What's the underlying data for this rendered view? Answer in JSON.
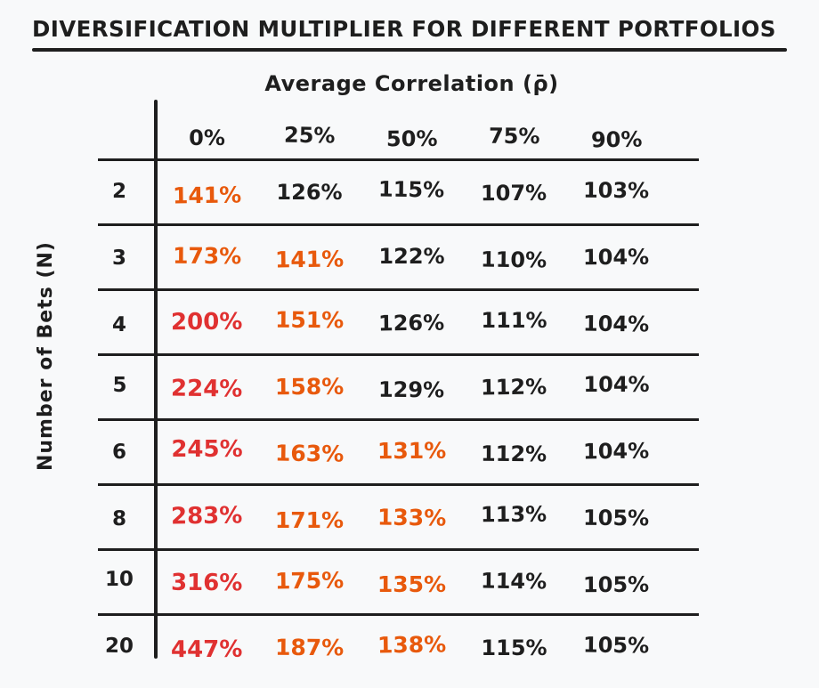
{
  "title": "DIVERSIFICATION MULTIPLIER FOR DIFFERENT PORTFOLIOS",
  "colors": {
    "black": "#1e1e1e",
    "red": "#e03131",
    "orange": "#e8590c",
    "background": "#f8f9fa"
  },
  "chart_data": {
    "type": "table",
    "title": "Diversification Multiplier for Different Portfolios",
    "column_axis_label": "Average Correlation (ρ̄)",
    "row_axis_label": "Number of Bets (N)",
    "columns": [
      "0%",
      "25%",
      "50%",
      "75%",
      "90%"
    ],
    "rows": [
      {
        "label": "2",
        "values": [
          "141%",
          "126%",
          "115%",
          "107%",
          "103%"
        ],
        "colors": [
          "orange",
          "black",
          "black",
          "black",
          "black"
        ]
      },
      {
        "label": "3",
        "values": [
          "173%",
          "141%",
          "122%",
          "110%",
          "104%"
        ],
        "colors": [
          "orange",
          "orange",
          "black",
          "black",
          "black"
        ]
      },
      {
        "label": "4",
        "values": [
          "200%",
          "151%",
          "126%",
          "111%",
          "104%"
        ],
        "colors": [
          "red",
          "orange",
          "black",
          "black",
          "black"
        ]
      },
      {
        "label": "5",
        "values": [
          "224%",
          "158%",
          "129%",
          "112%",
          "104%"
        ],
        "colors": [
          "red",
          "orange",
          "black",
          "black",
          "black"
        ]
      },
      {
        "label": "6",
        "values": [
          "245%",
          "163%",
          "131%",
          "112%",
          "104%"
        ],
        "colors": [
          "red",
          "orange",
          "orange",
          "black",
          "black"
        ]
      },
      {
        "label": "8",
        "values": [
          "283%",
          "171%",
          "133%",
          "113%",
          "105%"
        ],
        "colors": [
          "red",
          "orange",
          "orange",
          "black",
          "black"
        ]
      },
      {
        "label": "10",
        "values": [
          "316%",
          "175%",
          "135%",
          "114%",
          "105%"
        ],
        "colors": [
          "red",
          "orange",
          "orange",
          "black",
          "black"
        ]
      },
      {
        "label": "20",
        "values": [
          "447%",
          "187%",
          "138%",
          "115%",
          "105%"
        ],
        "colors": [
          "red",
          "orange",
          "orange",
          "black",
          "black"
        ]
      }
    ]
  }
}
